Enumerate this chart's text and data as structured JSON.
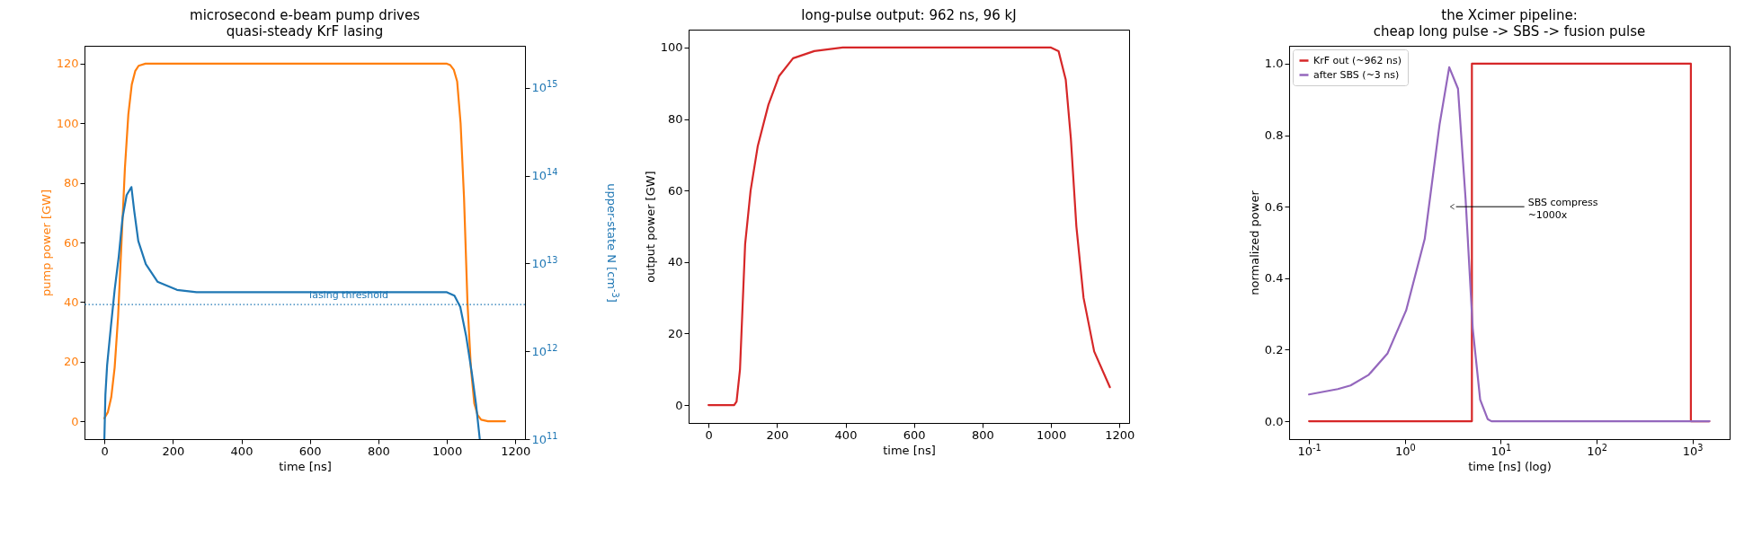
{
  "chart_data": [
    {
      "type": "line",
      "title": "microsecond e-beam pump drives\nquasi-steady KrF lasing",
      "xlabel": "time [ns]",
      "ylabel": "pump power [GW]",
      "y2label": "upper-state N [cm$^{-3}$]",
      "xlim": [
        -58,
        1228
      ],
      "xticks": [
        0,
        200,
        400,
        600,
        800,
        1000,
        1200
      ],
      "ylim": [
        -6,
        126
      ],
      "yticks": [
        0,
        20,
        40,
        60,
        80,
        100,
        120
      ],
      "log": "y2",
      "y2lim": [
        100000000000.0,
        3000000000000000.0
      ],
      "y2ticks": [
        {
          "value": 100000000000.0,
          "label": "10$^{11}$"
        },
        {
          "value": 1000000000000.0,
          "label": "10$^{12}$"
        },
        {
          "value": 10000000000000.0,
          "label": "10$^{13}$"
        },
        {
          "value": 100000000000000.0,
          "label": "10$^{14}$"
        },
        {
          "value": 1000000000000000.0,
          "label": "10$^{15}$"
        }
      ],
      "series": [
        {
          "color": "#ff7f0e",
          "x": [
            0,
            10,
            20,
            30,
            40,
            50,
            60,
            70,
            80,
            90,
            100,
            120,
            200,
            400,
            600,
            800,
            1000,
            1010,
            1020,
            1030,
            1040,
            1050,
            1060,
            1070,
            1080,
            1090,
            1100,
            1120,
            1170
          ],
          "values": [
            1,
            3,
            8,
            18,
            35,
            60,
            85,
            103,
            113,
            117.5,
            119.3,
            120,
            120,
            120,
            120,
            120,
            120,
            119.5,
            118,
            114,
            100,
            75,
            40,
            18,
            6,
            2,
            0.5,
            0,
            0
          ]
        },
        {
          "color": "#1f77b4",
          "axis": "y2",
          "x": [
            0,
            3,
            8,
            19,
            30,
            42,
            53,
            65,
            79,
            87,
            99,
            121,
            155,
            212,
            269,
            600,
            1000,
            1022,
            1039,
            1056,
            1073,
            1085,
            1096
          ],
          "values": [
            100000000000.0,
            320000000000.0,
            690000000000.0,
            1900000000000.0,
            5000000000000.0,
            12000000000000.0,
            33000000000000.0,
            60000000000000.0,
            74000000000000.0,
            40000000000000.0,
            18000000000000.0,
            9800000000000.0,
            6200000000000.0,
            5000000000000.0,
            4700000000000.0,
            4700000000000.0,
            4700000000000.0,
            4300000000000.0,
            3200000000000.0,
            1500000000000.0,
            560000000000.0,
            250000000000.0,
            100000000000.0
          ]
        }
      ],
      "ref_lines": [
        {
          "axis": "y2",
          "value": 3400000000000.0,
          "label": "lasing threshold",
          "color": "#1f77b4",
          "line_style": "dotted"
        }
      ]
    },
    {
      "type": "line",
      "title": "long-pulse output: 962 ns, 96 kJ",
      "xlabel": "time [ns]",
      "ylabel": "output power [GW]",
      "xlim": [
        -58,
        1228
      ],
      "xticks": [
        0,
        200,
        400,
        600,
        800,
        1000,
        1200
      ],
      "ylim": [
        -5,
        105
      ],
      "yticks": [
        0,
        20,
        40,
        60,
        80,
        100
      ],
      "series": [
        {
          "color": "#d62728",
          "x": [
            0,
            75,
            82,
            92,
            107,
            123,
            144,
            175,
            206,
            247,
            309,
            392,
            600,
            800,
            1000,
            1022,
            1043,
            1058,
            1074,
            1095,
            1126,
            1172
          ],
          "values": [
            0,
            0,
            1,
            10,
            45,
            60,
            72.5,
            84,
            92,
            97,
            99,
            100,
            100,
            100,
            100,
            99,
            91,
            74.5,
            50,
            30,
            15,
            5
          ]
        }
      ]
    },
    {
      "type": "line",
      "title": "the Xcimer pipeline:\ncheap long pulse -> SBS -> fusion pulse",
      "xlabel": "time [ns] (log)",
      "ylabel": "normalized power",
      "log": "x",
      "xlim": [
        0.062,
        2440
      ],
      "xticks": [
        {
          "value": 0.1,
          "label": "10$^{-1}$"
        },
        {
          "value": 1,
          "label": "10$^{0}$"
        },
        {
          "value": 10,
          "label": "10$^{1}$"
        },
        {
          "value": 100,
          "label": "10$^{2}$"
        },
        {
          "value": 1000,
          "label": "10$^{3}$"
        }
      ],
      "ylim": [
        -0.05,
        1.05
      ],
      "yticks": [
        {
          "value": 0,
          "label": "0.0"
        },
        {
          "value": 0.2,
          "label": "0.2"
        },
        {
          "value": 0.4,
          "label": "0.4"
        },
        {
          "value": 0.6,
          "label": "0.6"
        },
        {
          "value": 0.8,
          "label": "0.8"
        },
        {
          "value": 1,
          "label": "1.0"
        }
      ],
      "legend": "top left",
      "series": [
        {
          "name": "KrF out (~962 ns)",
          "color": "#d62728",
          "x": [
            0.1,
            5,
            5,
            962,
            962,
            1500
          ],
          "values": [
            0,
            0,
            1,
            1,
            0,
            0
          ]
        },
        {
          "name": "after SBS (~3 ns)",
          "color": "#9467bd",
          "x": [
            0.1,
            0.2,
            0.271,
            0.42,
            0.66,
            1.03,
            1.61,
            2.3,
            2.9,
            3.58,
            4.3,
            5.1,
            6.1,
            7.3,
            8,
            1500
          ],
          "values": [
            0.075,
            0.09,
            0.1,
            0.13,
            0.19,
            0.31,
            0.51,
            0.83,
            0.99,
            0.93,
            0.62,
            0.26,
            0.06,
            0.006,
            0,
            0
          ]
        }
      ],
      "annotations": [
        {
          "text": "SBS compress\n~1000x",
          "x": 3,
          "y": 0.6
        }
      ]
    }
  ]
}
